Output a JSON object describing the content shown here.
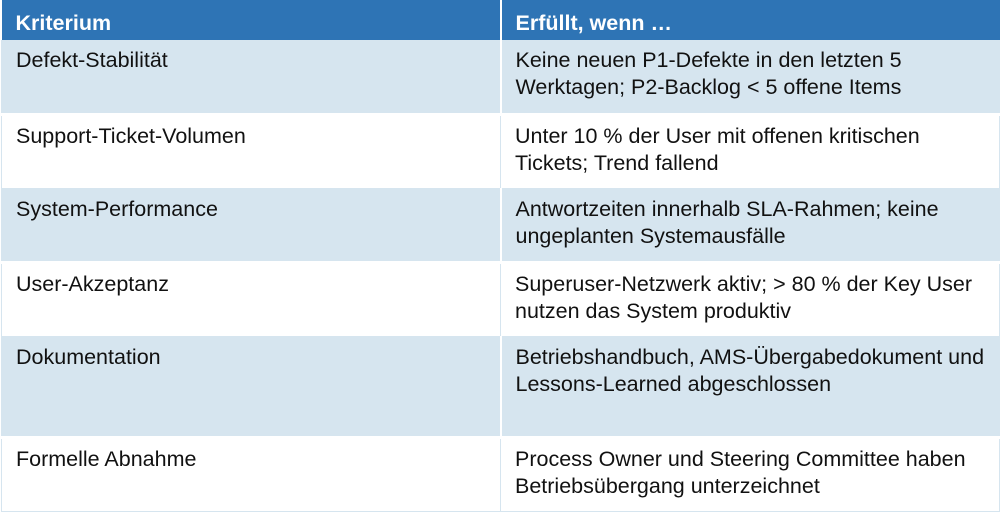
{
  "header": {
    "criterion": "Kriterium",
    "fulfilled_if": "Erfüllt, wenn …"
  },
  "rows": [
    {
      "criterion": "Defekt-Stabilität",
      "fulfilled_if": "Keine neuen P1-Defekte in den letzten 5 Werktagen; P2-Backlog < 5 offene Items"
    },
    {
      "criterion": "Support-Ticket-Volumen",
      "fulfilled_if": "Unter 10 % der User mit offenen kritischen Tickets; Trend fallend"
    },
    {
      "criterion": "System-Performance",
      "fulfilled_if": "Antwortzeiten innerhalb SLA-Rahmen; keine ungeplanten Systemausfälle"
    },
    {
      "criterion": "User-Akzeptanz",
      "fulfilled_if": "Superuser-Netzwerk aktiv; > 80 % der Key User nutzen das System produktiv"
    },
    {
      "criterion": "Dokumentation",
      "fulfilled_if": "Betriebshandbuch, AMS-Übergabedokument und Lessons-Learned abgeschlossen"
    },
    {
      "criterion": "Formelle Abnahme",
      "fulfilled_if": "Process Owner und Steering Committee haben Betriebsübergang unterzeichnet"
    }
  ],
  "colors": {
    "header_bg": "#2e74b5",
    "header_text": "#ffffff",
    "row_shade": "#d6e5ef",
    "row_plain": "#ffffff"
  }
}
